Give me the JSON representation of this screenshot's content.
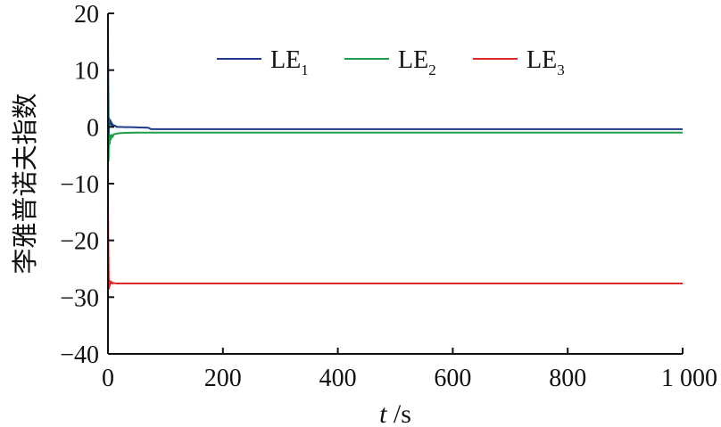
{
  "chart_data": {
    "type": "line",
    "title": "",
    "ylabel": "李雅普诺夫指数",
    "xlabel": {
      "var": "t",
      "unit": "s"
    },
    "xlim": [
      0,
      1000
    ],
    "ylim": [
      -40,
      20
    ],
    "xticks": [
      0,
      200,
      400,
      600,
      800,
      1000
    ],
    "xtick_labels": [
      "0",
      "200",
      "400",
      "600",
      "800",
      "1 000"
    ],
    "yticks": [
      20,
      10,
      0,
      -10,
      -20,
      -30,
      -40
    ],
    "ytick_labels": [
      "20",
      "10",
      "0",
      "−10",
      "−20",
      "−30",
      "−40"
    ],
    "grid": false,
    "legend_position": "top",
    "series": [
      {
        "name": "LE",
        "sub": "1",
        "color": "#1f3a8a",
        "x": [
          0,
          0.5,
          1,
          1.5,
          2,
          3,
          4,
          5,
          6,
          7,
          8,
          10,
          12,
          15,
          20,
          30,
          40,
          55,
          70,
          75,
          100,
          200,
          400,
          600,
          800,
          1000
        ],
        "y": [
          18,
          8,
          3,
          -2,
          1.5,
          0.6,
          1.2,
          0.4,
          0.8,
          0.2,
          0.5,
          0.1,
          0.25,
          0,
          0,
          -0.05,
          -0.05,
          -0.1,
          -0.15,
          -0.4,
          -0.4,
          -0.4,
          -0.4,
          -0.4,
          -0.4,
          -0.4
        ]
      },
      {
        "name": "LE",
        "sub": "2",
        "color": "#1e9e4a",
        "x": [
          0,
          0.5,
          1,
          1.5,
          2,
          3,
          4,
          5,
          6,
          8,
          10,
          15,
          20,
          30,
          50,
          100,
          200,
          400,
          600,
          800,
          1000
        ],
        "y": [
          9,
          2,
          -6,
          -3,
          -2,
          -3,
          -1.5,
          -2.2,
          -1.4,
          -1.8,
          -1.3,
          -1.2,
          -1.1,
          -1.05,
          -1,
          -1,
          -1,
          -1,
          -1,
          -1,
          -1
        ]
      },
      {
        "name": "LE",
        "sub": "3",
        "color": "#e02626",
        "x": [
          0,
          0.4,
          0.8,
          1.2,
          1.6,
          2,
          3,
          4,
          5,
          6,
          8,
          10,
          15,
          20,
          50,
          100,
          200,
          400,
          600,
          800,
          1000
        ],
        "y": [
          -10,
          -19,
          -23,
          -26,
          -28.5,
          -27,
          -28,
          -27.2,
          -27.6,
          -27.3,
          -27.6,
          -27.5,
          -27.6,
          -27.6,
          -27.6,
          -27.6,
          -27.6,
          -27.6,
          -27.6,
          -27.6,
          -27.6
        ]
      }
    ]
  }
}
